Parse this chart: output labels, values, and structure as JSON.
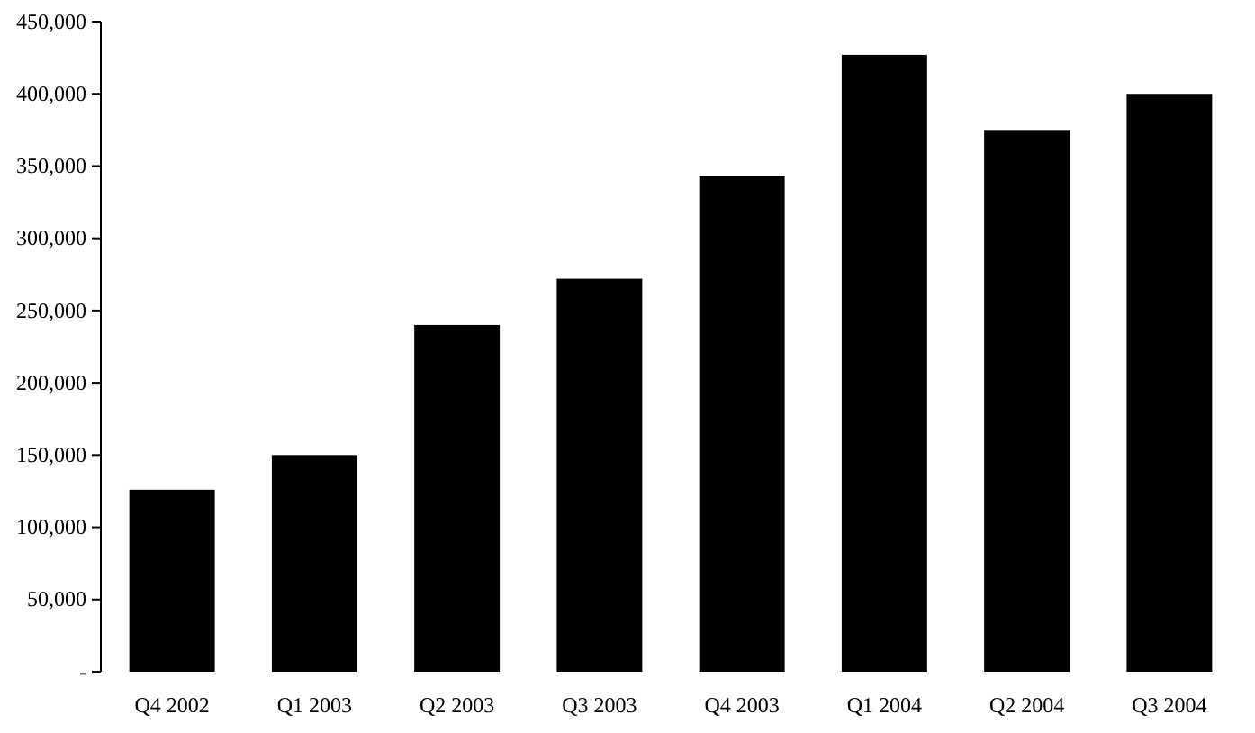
{
  "chart_data": {
    "type": "bar",
    "categories": [
      "Q4 2002",
      "Q1 2003",
      "Q2 2003",
      "Q3 2003",
      "Q4 2003",
      "Q1 2004",
      "Q2 2004",
      "Q3 2004"
    ],
    "values": [
      126000,
      150000,
      240000,
      272000,
      343000,
      427000,
      375000,
      400000
    ],
    "color": "#000000",
    "ylim": [
      0,
      450000
    ],
    "yticks": [
      {
        "value": 0,
        "label": "-"
      },
      {
        "value": 50000,
        "label": "50,000"
      },
      {
        "value": 100000,
        "label": "100,000"
      },
      {
        "value": 150000,
        "label": "150,000"
      },
      {
        "value": 200000,
        "label": "200,000"
      },
      {
        "value": 250000,
        "label": "250,000"
      },
      {
        "value": 300000,
        "label": "300,000"
      },
      {
        "value": 350000,
        "label": "350,000"
      },
      {
        "value": 400000,
        "label": "400,000"
      },
      {
        "value": 450000,
        "label": "450,000"
      }
    ],
    "grid": false
  }
}
